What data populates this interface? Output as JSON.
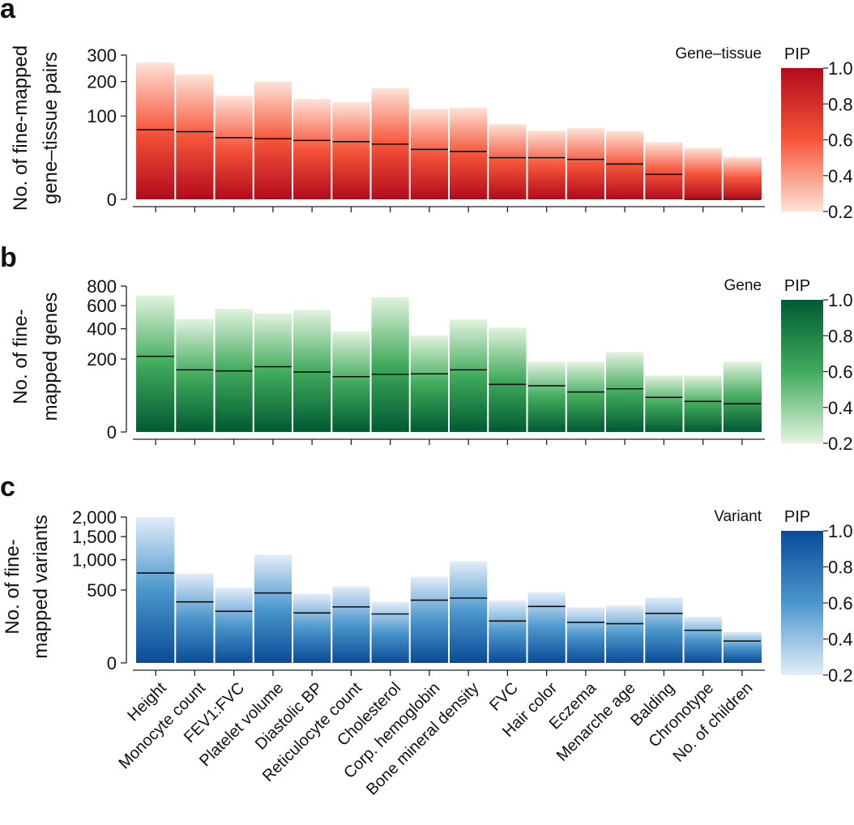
{
  "categories": [
    "Height",
    "Monocyte count",
    "FEV1:FVC",
    "Platelet volume",
    "Diastolic BP",
    "Reticulocyte count",
    "Cholesterol",
    "Corp. hemoglobin",
    "Bone mineral density",
    "FVC",
    "Hair color",
    "Eczema",
    "Menarche age",
    "Balding",
    "Chronotype",
    "No. of children"
  ],
  "chart_data": [
    {
      "type": "bar",
      "panel_label": "a",
      "corner_label": "Gene–tissue",
      "ylabel_lines": [
        "No. of fine-mapped",
        "gene–tissue pairs"
      ],
      "y_scale": "sqrt",
      "ylim": [
        0,
        300
      ],
      "y_ticks": [
        0,
        100,
        200,
        300
      ],
      "y_tick_labels": [
        "0",
        "100",
        "200",
        "300"
      ],
      "colorbar_title": "PIP",
      "colorbar_ticks": [
        "1.0",
        "0.8",
        "0.6",
        "0.4",
        "0.2"
      ],
      "colorbar_range": [
        0.2,
        1.0
      ],
      "colors": {
        "light": "#fde3d8",
        "mid": "#f6553a",
        "dark": "#b20a1c"
      },
      "totals": [
        270,
        225,
        155,
        200,
        145,
        136,
        178,
        118,
        121,
        82,
        68,
        73,
        67,
        47,
        38,
        26
      ],
      "high_pip_counts": [
        70,
        66,
        55,
        53,
        50,
        48,
        44,
        36,
        33,
        25,
        25,
        23,
        18,
        9,
        0,
        0
      ]
    },
    {
      "type": "bar",
      "panel_label": "b",
      "corner_label": "Gene",
      "ylabel_lines": [
        "No. of fine-",
        "mapped genes"
      ],
      "y_scale": "sqrt",
      "ylim": [
        0,
        800
      ],
      "y_ticks": [
        0,
        200,
        400,
        600,
        800
      ],
      "y_tick_labels": [
        "0",
        "200",
        "400",
        "600",
        "800"
      ],
      "colorbar_title": "PIP",
      "colorbar_ticks": [
        "1.0",
        "0.8",
        "0.6",
        "0.4",
        "0.2"
      ],
      "colorbar_range": [
        0.2,
        1.0
      ],
      "colors": {
        "light": "#e2f3df",
        "mid": "#41ab5d",
        "dark": "#005a32"
      },
      "totals": [
        700,
        480,
        570,
        530,
        560,
        380,
        685,
        350,
        475,
        410,
        185,
        185,
        240,
        120,
        120,
        185
      ],
      "high_pip_counts": [
        215,
        145,
        140,
        160,
        135,
        115,
        125,
        127,
        145,
        85,
        80,
        60,
        70,
        45,
        35,
        30
      ]
    },
    {
      "type": "bar",
      "panel_label": "c",
      "corner_label": "Variant",
      "ylabel_lines": [
        "No. of fine-",
        "mapped variants"
      ],
      "y_scale": "sqrt",
      "ylim": [
        0,
        2000
      ],
      "y_ticks": [
        0,
        500,
        1000,
        1500,
        2000
      ],
      "y_tick_labels": [
        "0",
        "500",
        "1,000",
        "1,500",
        "2,000"
      ],
      "colorbar_title": "PIP",
      "colorbar_ticks": [
        "1.0",
        "0.8",
        "0.6",
        "0.4",
        "0.2"
      ],
      "colorbar_range": [
        0.2,
        1.0
      ],
      "colors": {
        "light": "#e3ecf9",
        "mid": "#4b97cc",
        "dark": "#0b4a98"
      },
      "totals": [
        2000,
        750,
        530,
        1100,
        450,
        550,
        350,
        700,
        970,
        365,
        470,
        290,
        310,
        400,
        200,
        90
      ],
      "high_pip_counts": [
        760,
        350,
        250,
        460,
        235,
        295,
        225,
        370,
        395,
        165,
        300,
        155,
        145,
        230,
        100,
        45
      ]
    }
  ]
}
